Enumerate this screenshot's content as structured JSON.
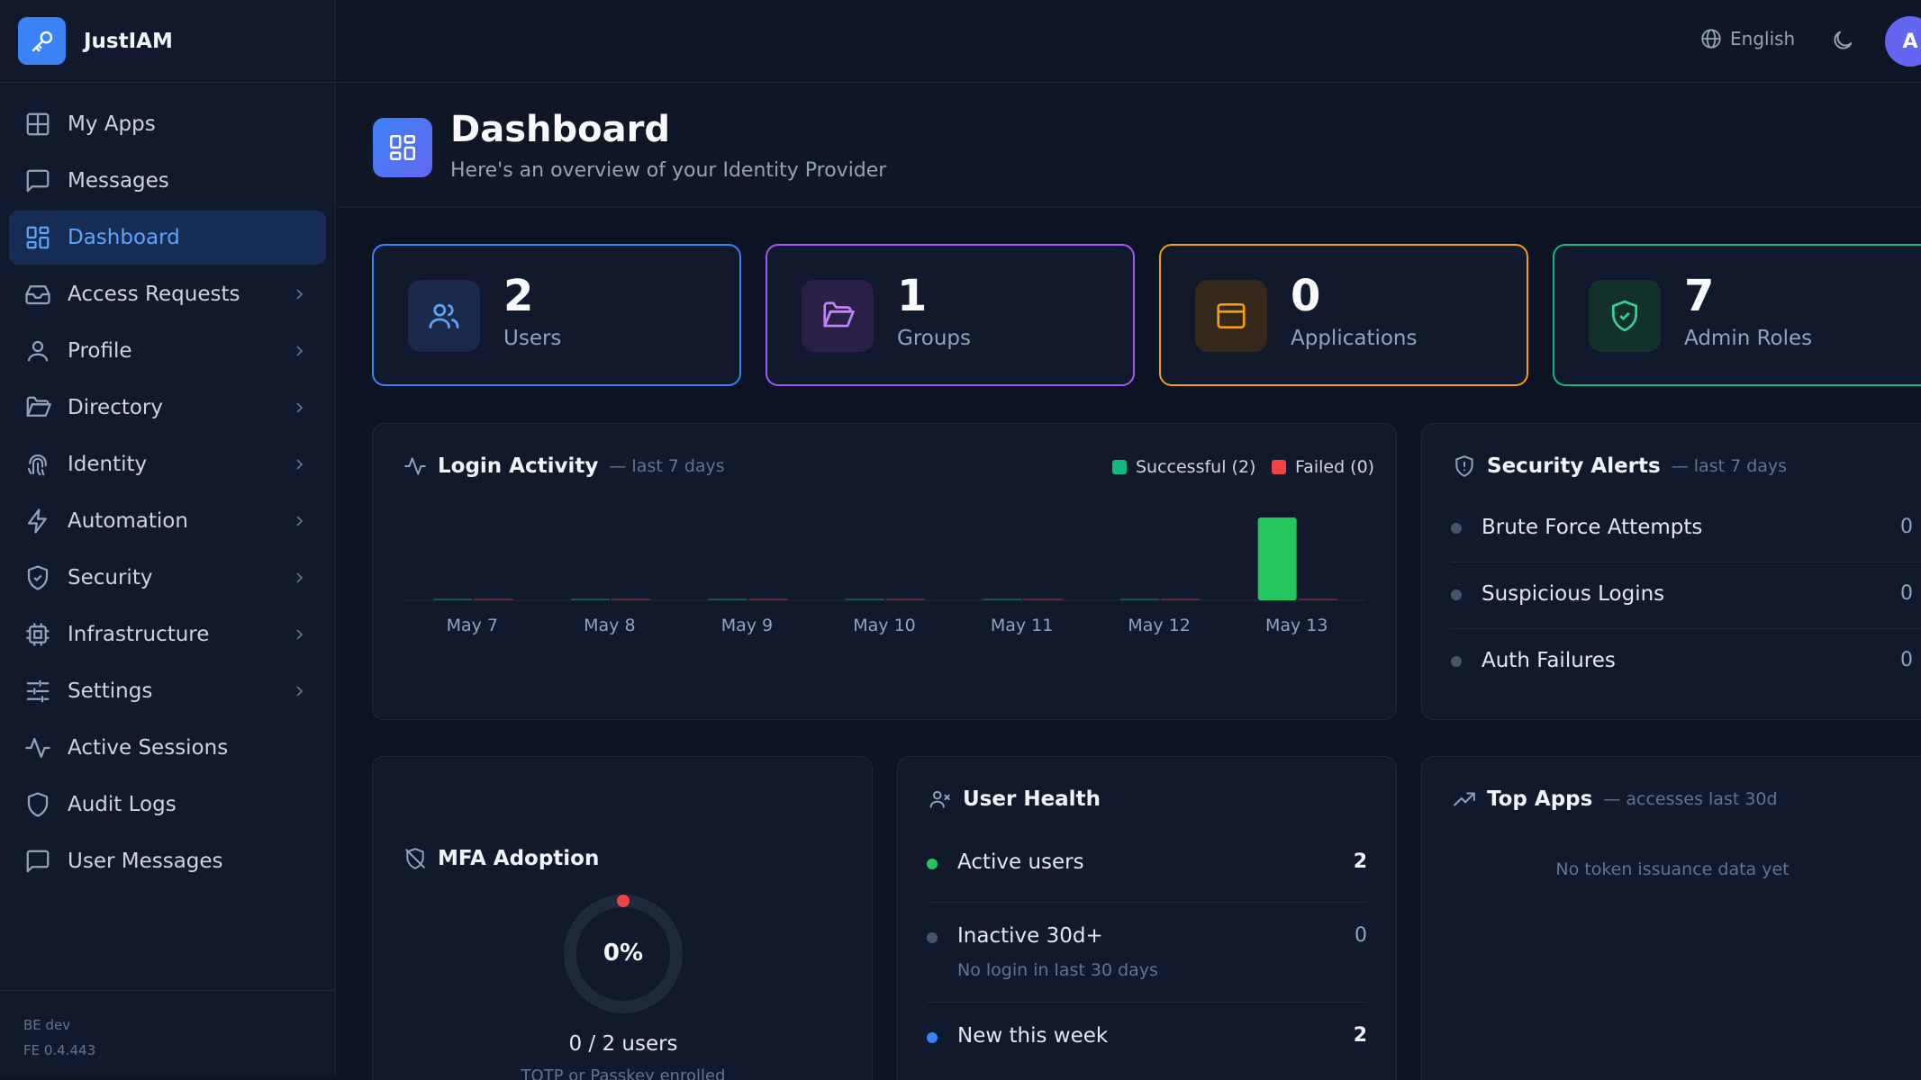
{
  "app": {
    "name": "JustIAM"
  },
  "sidebar": {
    "items": [
      {
        "label": "My Apps",
        "icon": "grid-icon",
        "chevron": false
      },
      {
        "label": "Messages",
        "icon": "message-square-icon",
        "chevron": false
      },
      {
        "label": "Dashboard",
        "icon": "dashboard-icon",
        "chevron": false,
        "active": true
      },
      {
        "label": "Access Requests",
        "icon": "inbox-icon",
        "chevron": true
      },
      {
        "label": "Profile",
        "icon": "user-icon",
        "chevron": true
      },
      {
        "label": "Directory",
        "icon": "folder-icon",
        "chevron": true
      },
      {
        "label": "Identity",
        "icon": "fingerprint-icon",
        "chevron": true
      },
      {
        "label": "Automation",
        "icon": "zap-icon",
        "chevron": true
      },
      {
        "label": "Security",
        "icon": "shield-check-icon",
        "chevron": true
      },
      {
        "label": "Infrastructure",
        "icon": "cpu-icon",
        "chevron": true
      },
      {
        "label": "Settings",
        "icon": "sliders-icon",
        "chevron": true
      },
      {
        "label": "Active Sessions",
        "icon": "activity-icon",
        "chevron": false
      },
      {
        "label": "Audit Logs",
        "icon": "shield-icon",
        "chevron": false
      },
      {
        "label": "User Messages",
        "icon": "message-square-icon",
        "chevron": false
      }
    ],
    "footer": {
      "be": "BE dev",
      "fe": "FE 0.4.443"
    }
  },
  "topbar": {
    "language": "English",
    "avatar_initial": "A"
  },
  "header": {
    "title": "Dashboard",
    "subtitle": "Here's an overview of your Identity Provider"
  },
  "stats": [
    {
      "value": "2",
      "label": "Users",
      "color": "#3b82f6"
    },
    {
      "value": "1",
      "label": "Groups",
      "color": "#a855f7"
    },
    {
      "value": "0",
      "label": "Applications",
      "color": "#f59e0b"
    },
    {
      "value": "7",
      "label": "Admin Roles",
      "color": "#10b981"
    }
  ],
  "login_activity": {
    "title": "Login Activity",
    "subtitle": "— last 7 days",
    "legend_success": "Successful (2)",
    "legend_failed": "Failed (0)",
    "colors": {
      "success": "#22c55e",
      "failed": "#ef4444"
    }
  },
  "chart_data": {
    "type": "bar",
    "categories": [
      "May 7",
      "May 8",
      "May 9",
      "May 10",
      "May 11",
      "May 12",
      "May 13"
    ],
    "series": [
      {
        "name": "Successful",
        "values": [
          0,
          0,
          0,
          0,
          0,
          0,
          2
        ]
      },
      {
        "name": "Failed",
        "values": [
          0,
          0,
          0,
          0,
          0,
          0,
          0
        ]
      }
    ],
    "ylim": [
      0,
      2
    ],
    "legend": "top-right",
    "grid": false
  },
  "security_alerts": {
    "title": "Security Alerts",
    "subtitle": "— last 7 days",
    "items": [
      {
        "label": "Brute Force Attempts",
        "value": "0"
      },
      {
        "label": "Suspicious Logins",
        "value": "0"
      },
      {
        "label": "Auth Failures",
        "value": "0"
      }
    ]
  },
  "mfa": {
    "title": "MFA Adoption",
    "percent_label": "0%",
    "percent": 0,
    "count_label": "0 / 2 users",
    "caption": "TOTP or Passkey enrolled"
  },
  "user_health": {
    "title": "User Health",
    "items": [
      {
        "label": "Active users",
        "value": "2",
        "sub": ""
      },
      {
        "label": "Inactive 30d+",
        "value": "0",
        "sub": "No login in last 30 days"
      },
      {
        "label": "New this week",
        "value": "2",
        "sub": ""
      }
    ]
  },
  "top_apps": {
    "title": "Top Apps",
    "subtitle": "— accesses last 30d",
    "empty": "No token issuance data yet"
  }
}
